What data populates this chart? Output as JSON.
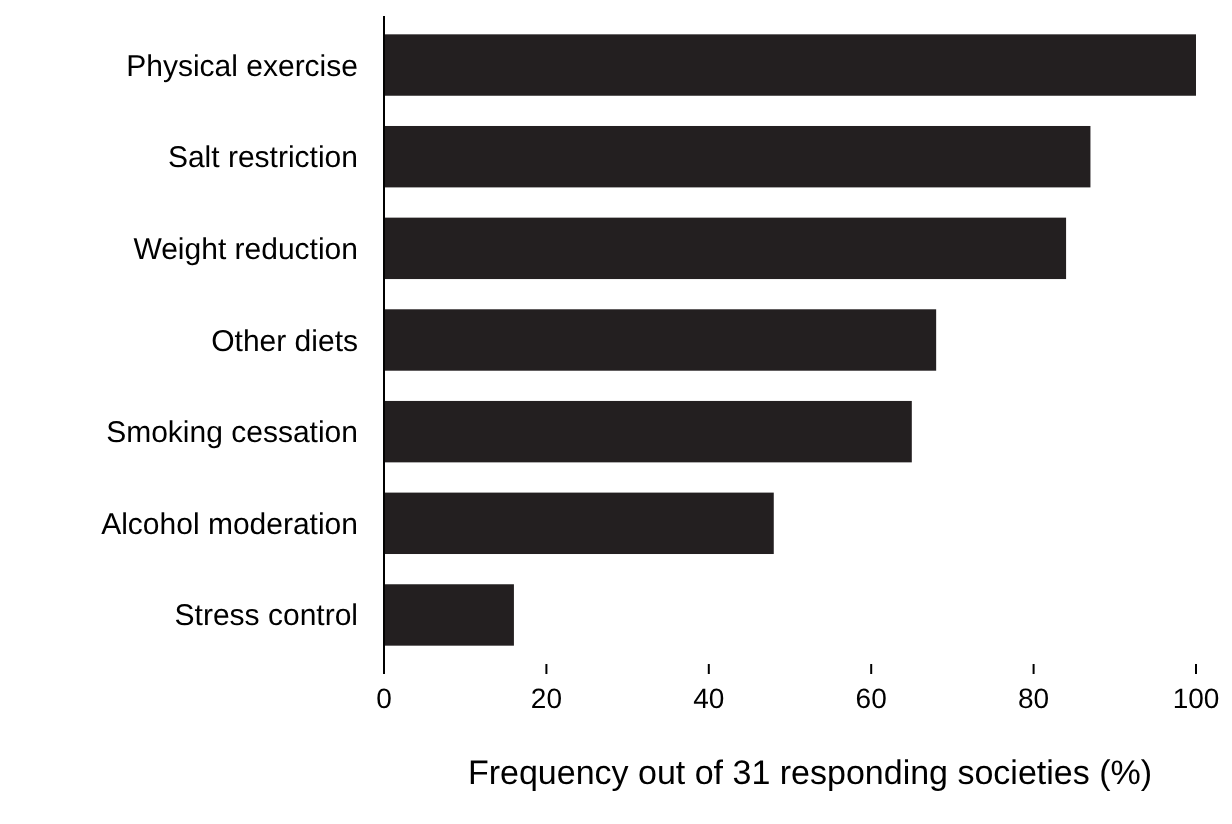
{
  "chart_data": {
    "type": "bar",
    "orientation": "horizontal",
    "xlabel": "Frequency out of 31 responding societies (%)",
    "categories": [
      "Physical exercise",
      "Salt restriction",
      "Weight reduction",
      "Other diets",
      "Smoking cessation",
      "Alcohol moderation",
      "Stress control"
    ],
    "values": [
      100,
      87,
      84,
      68,
      65,
      48,
      16
    ],
    "color": "#231f20",
    "xlim": [
      0,
      100
    ],
    "xticks": [
      0,
      20,
      40,
      60,
      80,
      100
    ],
    "grid": false
  }
}
